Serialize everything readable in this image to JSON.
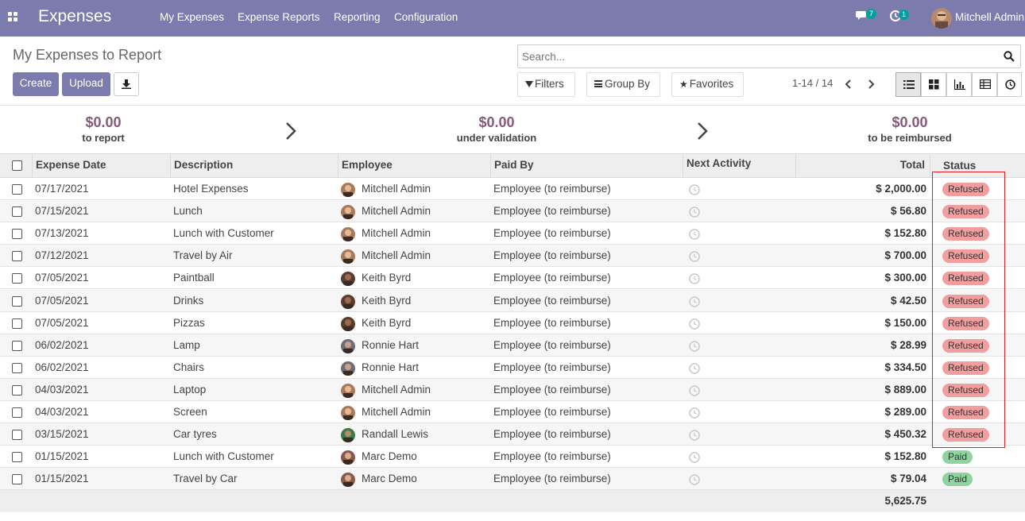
{
  "navbar": {
    "brand": "Expenses",
    "menu": [
      "My Expenses",
      "Expense Reports",
      "Reporting",
      "Configuration"
    ],
    "chat_count": "7",
    "activity_count": "1",
    "user_name": "Mitchell Admin"
  },
  "control": {
    "breadcrumb": "My Expenses to Report",
    "create_label": "Create",
    "upload_label": "Upload",
    "search_placeholder": "Search...",
    "filters_label": "Filters",
    "groupby_label": "Group By",
    "favorites_label": "Favorites",
    "pager": "1-14 / 14"
  },
  "summary": [
    {
      "amount": "$0.00",
      "label": "to report"
    },
    {
      "amount": "$0.00",
      "label": "under validation"
    },
    {
      "amount": "$0.00",
      "label": "to be reimbursed"
    }
  ],
  "table": {
    "headers": [
      "Expense Date",
      "Description",
      "Employee",
      "Paid By",
      "Next Activity",
      "Total",
      "Status"
    ],
    "rows": [
      {
        "date": "07/17/2021",
        "desc": "Hotel Expenses",
        "emp": "Mitchell Admin",
        "paid_by": "Employee (to reimburse)",
        "total": "$ 2,000.00",
        "status": "Refused"
      },
      {
        "date": "07/15/2021",
        "desc": "Lunch",
        "emp": "Mitchell Admin",
        "paid_by": "Employee (to reimburse)",
        "total": "$ 56.80",
        "status": "Refused"
      },
      {
        "date": "07/13/2021",
        "desc": "Lunch with Customer",
        "emp": "Mitchell Admin",
        "paid_by": "Employee (to reimburse)",
        "total": "$ 152.80",
        "status": "Refused"
      },
      {
        "date": "07/12/2021",
        "desc": "Travel by Air",
        "emp": "Mitchell Admin",
        "paid_by": "Employee (to reimburse)",
        "total": "$ 700.00",
        "status": "Refused"
      },
      {
        "date": "07/05/2021",
        "desc": "Paintball",
        "emp": "Keith Byrd",
        "paid_by": "Employee (to reimburse)",
        "total": "$ 300.00",
        "status": "Refused"
      },
      {
        "date": "07/05/2021",
        "desc": "Drinks",
        "emp": "Keith Byrd",
        "paid_by": "Employee (to reimburse)",
        "total": "$ 42.50",
        "status": "Refused"
      },
      {
        "date": "07/05/2021",
        "desc": "Pizzas",
        "emp": "Keith Byrd",
        "paid_by": "Employee (to reimburse)",
        "total": "$ 150.00",
        "status": "Refused"
      },
      {
        "date": "06/02/2021",
        "desc": "Lamp",
        "emp": "Ronnie Hart",
        "paid_by": "Employee (to reimburse)",
        "total": "$ 28.99",
        "status": "Refused"
      },
      {
        "date": "06/02/2021",
        "desc": "Chairs",
        "emp": "Ronnie Hart",
        "paid_by": "Employee (to reimburse)",
        "total": "$ 334.50",
        "status": "Refused"
      },
      {
        "date": "04/03/2021",
        "desc": "Laptop",
        "emp": "Mitchell Admin",
        "paid_by": "Employee (to reimburse)",
        "total": "$ 889.00",
        "status": "Refused"
      },
      {
        "date": "04/03/2021",
        "desc": "Screen",
        "emp": "Mitchell Admin",
        "paid_by": "Employee (to reimburse)",
        "total": "$ 289.00",
        "status": "Refused"
      },
      {
        "date": "03/15/2021",
        "desc": "Car tyres",
        "emp": "Randall Lewis",
        "paid_by": "Employee (to reimburse)",
        "total": "$ 450.32",
        "status": "Refused"
      },
      {
        "date": "01/15/2021",
        "desc": "Lunch with Customer",
        "emp": "Marc Demo",
        "paid_by": "Employee (to reimburse)",
        "total": "$ 152.80",
        "status": "Paid"
      },
      {
        "date": "01/15/2021",
        "desc": "Travel by Car",
        "emp": "Marc Demo",
        "paid_by": "Employee (to reimburse)",
        "total": "$ 79.04",
        "status": "Paid"
      }
    ],
    "footer_total": "5,625.75"
  },
  "colors": {
    "navbar": "#7c7bad",
    "refused": "#f29e9e",
    "paid": "#8fd39f",
    "summary_amount": "#875a7b",
    "highlight": "#e02020"
  }
}
